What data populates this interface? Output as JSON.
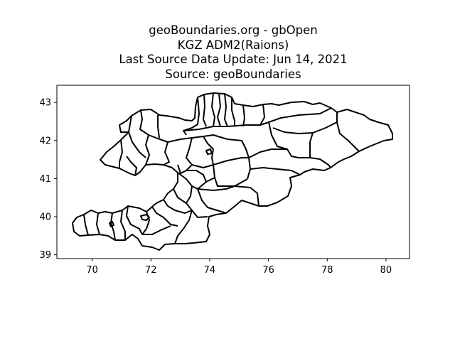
{
  "title_lines": [
    "geoBoundaries.org - gbOpen",
    "KGZ ADM2(Raions)",
    "Last Source Data Update: Jun 14, 2021",
    "Source: geoBoundaries"
  ],
  "chart_data": {
    "type": "map",
    "xlim": [
      68.8,
      80.8
    ],
    "ylim": [
      38.9,
      43.45
    ],
    "x_ticks": [
      "70",
      "72",
      "74",
      "76",
      "78",
      "80"
    ],
    "y_ticks": [
      "39",
      "40",
      "41",
      "42",
      "43"
    ],
    "x_tick_values": [
      70,
      72,
      74,
      76,
      78,
      80
    ],
    "y_tick_values": [
      39,
      40,
      41,
      42,
      43
    ],
    "boundary_color": "#000000",
    "grid": false,
    "legend": false
  }
}
